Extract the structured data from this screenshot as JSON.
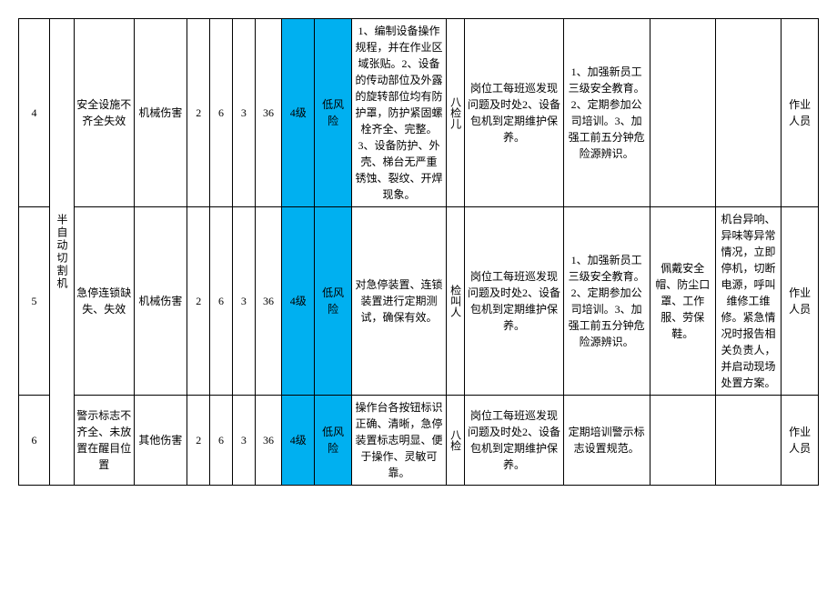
{
  "equipment": "半自动切割机",
  "rows": [
    {
      "num": "4",
      "risk": "安全设施不齐全失效",
      "harm": "机械伤害",
      "L": "2",
      "E": "6",
      "C": "3",
      "D": "36",
      "lvl1": "4级",
      "lvl2": "低风险",
      "measure1": "1、编制设备操作规程，并在作业区域张贴。2、设备的传动部位及外露的旋转部位均有防护罩，防护紧固螺栓齐全、完整。3、设备防护、外壳、梯台无严重\n锈蚀、裂纹、开焊现象。",
      "vcol": "八检儿",
      "measure2": "岗位工每班巡发现问题及时处2、设备包机到定期维护保养。",
      "measure3": "1、加强新员工三级安全教育。2、定期参加公司培训。3、加强工前五分钟危险源辨识。",
      "measure4": "",
      "measure5": "",
      "person": "作业人员"
    },
    {
      "num": "5",
      "risk": "急停连锁缺失、失效",
      "harm": "机械伤害",
      "L": "2",
      "E": "6",
      "C": "3",
      "D": "36",
      "lvl1": "4级",
      "lvl2": "低风险",
      "measure1": "对急停装置、连锁装置进行定期测试，确保有效。",
      "vcol": "检叫人",
      "measure2": "岗位工每班巡发现问题及时处2、设备包机到定期维护保养。",
      "measure3": "1、加强新员工三级安全教育。2、定期参加公司培训。3、加强工前五分钟危险源辨识。",
      "measure4": "佩戴安全帽、防尘口罩、工作服、劳保鞋。",
      "measure5": "机台异响、异味等异常情况，立即停机，切断电源，呼叫维修工维修。紧急情况时报告相关负责人，并启动现场处置方案。",
      "person": "作业人员"
    },
    {
      "num": "6",
      "risk": "警示标志不齐全、未放置在醒目位置",
      "harm": "其他伤害",
      "L": "2",
      "E": "6",
      "C": "3",
      "D": "36",
      "lvl1": "4级",
      "lvl2": "低风险",
      "measure1": "操作台各按钮标识正确、清晰，急停装置标志明显、便于操作、灵敏可靠。",
      "vcol": "八检",
      "measure2": "岗位工每班巡发现问题及时处2、设备包机到定期维护保养。",
      "measure3": "定期培训警示标志设置规范。",
      "measure4": "",
      "measure5": "",
      "person": "作业人员"
    }
  ]
}
